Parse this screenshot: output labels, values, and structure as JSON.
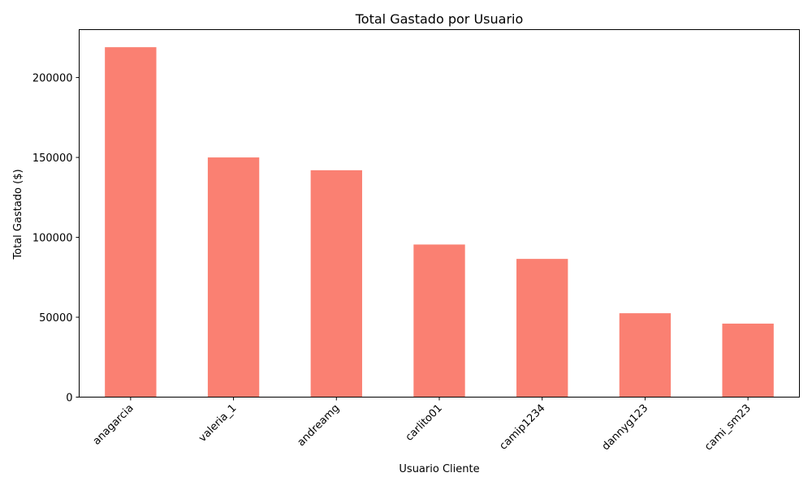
{
  "chart_data": {
    "type": "bar",
    "title": "Total Gastado por Usuario",
    "xlabel": "Usuario Cliente",
    "ylabel": "Total Gastado ($)",
    "categories": [
      "anagarcia",
      "valeria_1",
      "andreamg",
      "carlito01",
      "camip1234",
      "dannyg123",
      "cami_sm23"
    ],
    "values": [
      219000,
      150000,
      142000,
      95500,
      86500,
      52500,
      46000
    ],
    "ylim": [
      0,
      230000
    ],
    "yticks": [
      0,
      50000,
      100000,
      150000,
      200000
    ],
    "ytick_labels": [
      "0",
      "50000",
      "100000",
      "150000",
      "200000"
    ],
    "bar_color": "#fa8072",
    "grid": false,
    "legend": "none"
  }
}
